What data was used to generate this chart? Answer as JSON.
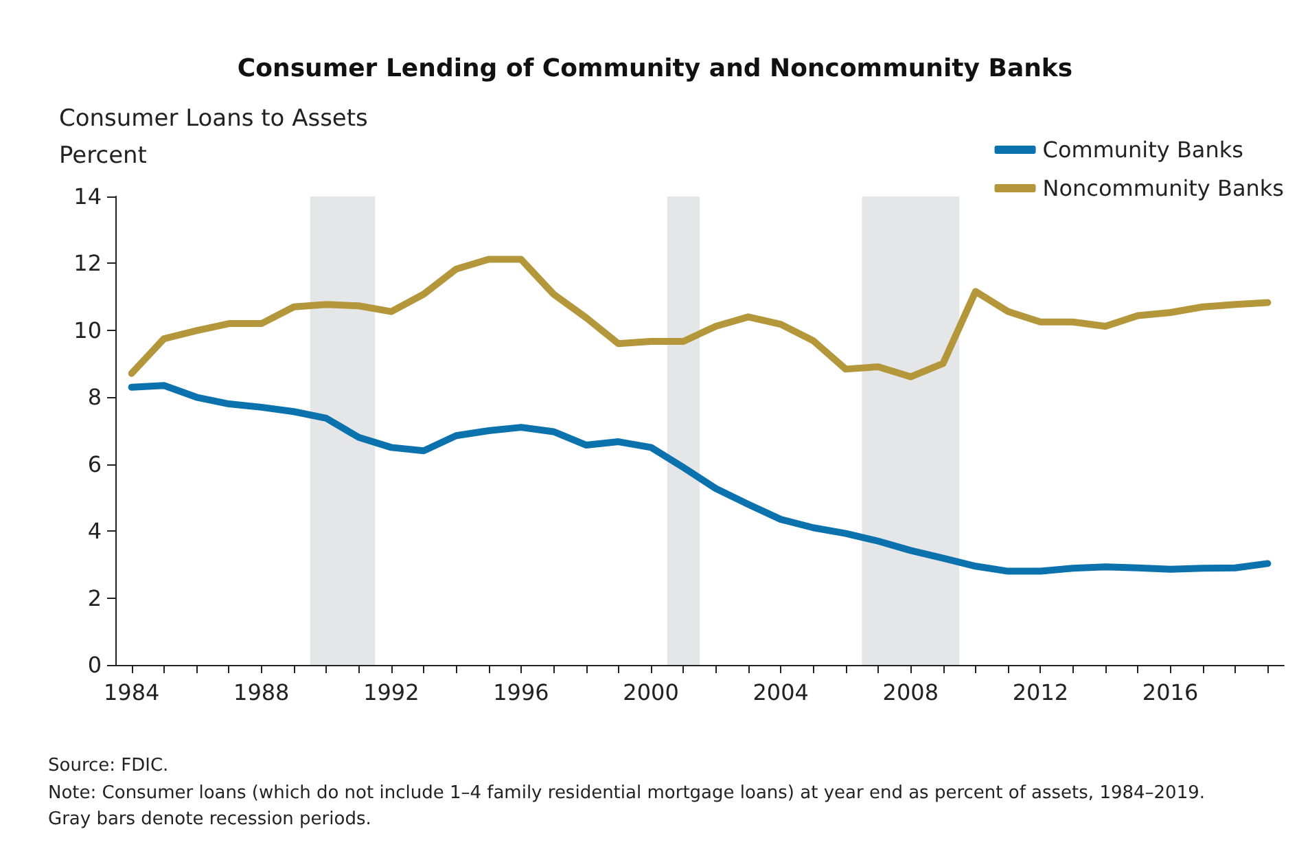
{
  "chart_data": {
    "type": "line",
    "title": "Consumer Lending of Community and Noncommunity Banks",
    "ylabel": "Consumer Loans to Assets\nPercent",
    "x": [
      1984,
      1985,
      1986,
      1987,
      1988,
      1989,
      1990,
      1991,
      1992,
      1993,
      1994,
      1995,
      1996,
      1997,
      1998,
      1999,
      2000,
      2001,
      2002,
      2003,
      2004,
      2005,
      2006,
      2007,
      2008,
      2009,
      2010,
      2011,
      2012,
      2013,
      2014,
      2015,
      2016,
      2017,
      2018,
      2019
    ],
    "series": [
      {
        "name": "Community Banks",
        "color": "#0b72ae",
        "values": [
          8.3,
          8.35,
          8.0,
          7.8,
          7.7,
          7.57,
          7.37,
          6.8,
          6.5,
          6.4,
          6.85,
          7.0,
          7.1,
          6.97,
          6.57,
          6.67,
          6.5,
          5.9,
          5.27,
          4.8,
          4.35,
          4.1,
          3.93,
          3.7,
          3.42,
          3.19,
          2.95,
          2.8,
          2.8,
          2.89,
          2.93,
          2.9,
          2.86,
          2.89,
          2.9,
          3.03
        ]
      },
      {
        "name": "Noncommunity Banks",
        "color": "#b4973b",
        "values": [
          8.71,
          9.75,
          9.99,
          10.2,
          10.2,
          10.7,
          10.77,
          10.73,
          10.56,
          11.08,
          11.83,
          12.12,
          12.12,
          11.08,
          10.38,
          9.6,
          9.67,
          9.67,
          10.12,
          10.4,
          10.18,
          9.69,
          8.84,
          8.91,
          8.61,
          9.01,
          11.16,
          10.56,
          10.25,
          10.25,
          10.12,
          10.44,
          10.53,
          10.7,
          10.77,
          10.83
        ]
      }
    ],
    "xlim": [
      1983.5,
      2019.5
    ],
    "xticks": [
      1984,
      1988,
      1992,
      1996,
      2000,
      2004,
      2008,
      2012,
      2016
    ],
    "ylim": [
      0,
      14
    ],
    "yticks": [
      0,
      2,
      4,
      6,
      8,
      10,
      12,
      14
    ],
    "bands": [
      {
        "axis": "x",
        "from": 1989.5,
        "to": 1991.5,
        "color": "#e5e6e8"
      },
      {
        "axis": "x",
        "from": 2000.5,
        "to": 2001.5,
        "color": "#e5e6e8"
      },
      {
        "axis": "x",
        "from": 2006.5,
        "to": 2009.5,
        "color": "#e5e6e8"
      }
    ],
    "grid": false,
    "legend": "top right",
    "marker": "none",
    "line_style": "solid",
    "annotations": [
      "Source: FDIC.",
      "Note: Consumer loans (which do not include 1–4 family residential mortgage loans) at year end as percent of assets, 1984–2019. Gray bars denote recession periods."
    ]
  }
}
